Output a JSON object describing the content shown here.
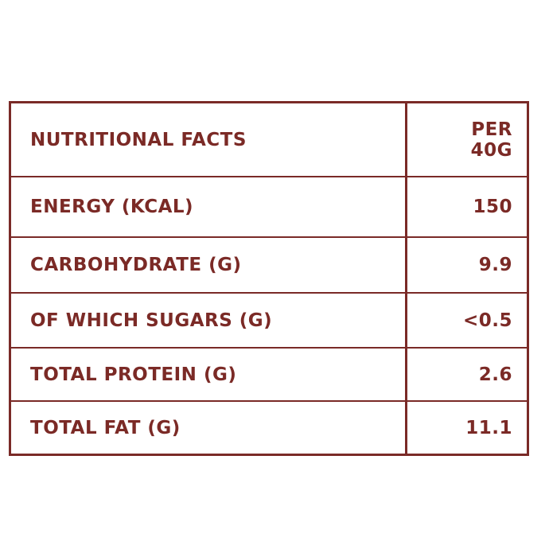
{
  "table": {
    "header": [
      "NUTRITIONAL FACTS",
      "PER 40G"
    ],
    "rows": [
      [
        "ENERGY (KCAL)",
        "150"
      ],
      [
        "CARBOHYDRATE (G)",
        "9.9"
      ],
      [
        "OF WHICH SUGARS (G)",
        "<0.5"
      ],
      [
        "TOTAL PROTEIN (G)",
        "2.6"
      ],
      [
        "TOTAL FAT (G)",
        "11.1"
      ]
    ]
  }
}
